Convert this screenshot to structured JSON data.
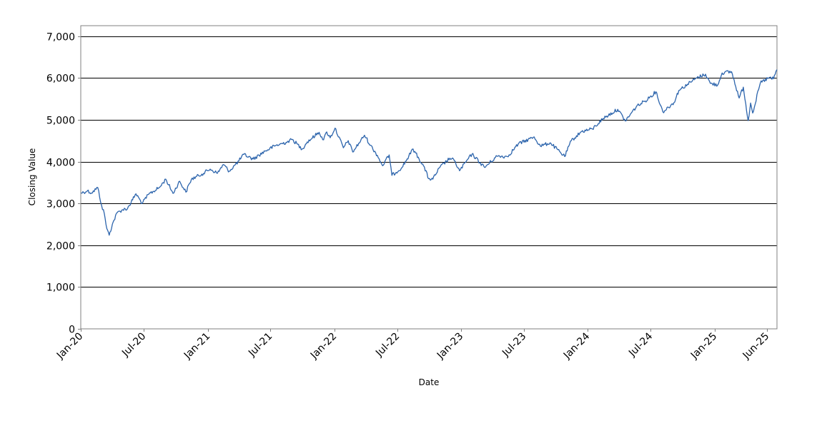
{
  "chart_data": {
    "type": "line",
    "title": "",
    "xlabel": "Date",
    "ylabel": "Closing Value",
    "ylim": [
      0,
      7250
    ],
    "xlim": [
      "2020-01-01",
      "2025-06-30"
    ],
    "grid": {
      "horizontal": true,
      "vertical": false
    },
    "legend": "none",
    "y_ticks": [
      0,
      1000,
      2000,
      3000,
      4000,
      5000,
      6000,
      7000
    ],
    "y_tick_labels": [
      "0",
      "1,000",
      "2,000",
      "3,000",
      "4,000",
      "5,000",
      "6,000",
      "7,000"
    ],
    "x_ticks": [
      {
        "label": "Jan-20",
        "date": "2020-01-01"
      },
      {
        "label": "Jul-20",
        "date": "2020-07-01"
      },
      {
        "label": "Jan-21",
        "date": "2021-01-01"
      },
      {
        "label": "Jul-21",
        "date": "2021-07-01"
      },
      {
        "label": "Jan-22",
        "date": "2022-01-01"
      },
      {
        "label": "Jul-22",
        "date": "2022-07-01"
      },
      {
        "label": "Jan-23",
        "date": "2023-01-01"
      },
      {
        "label": "Jul-23",
        "date": "2023-07-01"
      },
      {
        "label": "Jan-24",
        "date": "2024-01-01"
      },
      {
        "label": "Jul-24",
        "date": "2024-07-01"
      },
      {
        "label": "Jan-25",
        "date": "2025-01-01"
      },
      {
        "label": "Jun-25",
        "date": "2025-06-01"
      }
    ],
    "series": [
      {
        "color": "#2c64ac",
        "points": [
          [
            "2020-01-02",
            3250
          ],
          [
            "2020-01-20",
            3300
          ],
          [
            "2020-02-01",
            3250
          ],
          [
            "2020-02-19",
            3380
          ],
          [
            "2020-03-01",
            2950
          ],
          [
            "2020-03-09",
            2750
          ],
          [
            "2020-03-16",
            2400
          ],
          [
            "2020-03-23",
            2240
          ],
          [
            "2020-04-01",
            2500
          ],
          [
            "2020-04-15",
            2780
          ],
          [
            "2020-05-01",
            2850
          ],
          [
            "2020-05-15",
            2880
          ],
          [
            "2020-06-08",
            3230
          ],
          [
            "2020-06-26",
            3000
          ],
          [
            "2020-07-15",
            3220
          ],
          [
            "2020-08-15",
            3380
          ],
          [
            "2020-09-02",
            3580
          ],
          [
            "2020-09-23",
            3240
          ],
          [
            "2020-10-12",
            3530
          ],
          [
            "2020-10-30",
            3270
          ],
          [
            "2020-11-15",
            3580
          ],
          [
            "2020-12-15",
            3700
          ],
          [
            "2021-01-08",
            3820
          ],
          [
            "2021-01-29",
            3720
          ],
          [
            "2021-02-15",
            3930
          ],
          [
            "2021-03-04",
            3770
          ],
          [
            "2021-04-01",
            4020
          ],
          [
            "2021-04-15",
            4170
          ],
          [
            "2021-05-12",
            4060
          ],
          [
            "2021-06-15",
            4250
          ],
          [
            "2021-07-15",
            4380
          ],
          [
            "2021-08-15",
            4460
          ],
          [
            "2021-09-02",
            4530
          ],
          [
            "2021-09-30",
            4300
          ],
          [
            "2021-10-15",
            4470
          ],
          [
            "2021-11-18",
            4700
          ],
          [
            "2021-12-01",
            4520
          ],
          [
            "2021-12-10",
            4710
          ],
          [
            "2021-12-20",
            4570
          ],
          [
            "2022-01-03",
            4800
          ],
          [
            "2022-01-27",
            4330
          ],
          [
            "2022-02-10",
            4500
          ],
          [
            "2022-02-23",
            4230
          ],
          [
            "2022-03-29",
            4630
          ],
          [
            "2022-04-15",
            4390
          ],
          [
            "2022-05-05",
            4150
          ],
          [
            "2022-05-20",
            3900
          ],
          [
            "2022-06-08",
            4160
          ],
          [
            "2022-06-16",
            3670
          ],
          [
            "2022-07-15",
            3860
          ],
          [
            "2022-08-16",
            4300
          ],
          [
            "2022-09-15",
            3900
          ],
          [
            "2022-09-30",
            3590
          ],
          [
            "2022-10-12",
            3580
          ],
          [
            "2022-11-01",
            3860
          ],
          [
            "2022-11-30",
            4080
          ],
          [
            "2022-12-13",
            4020
          ],
          [
            "2022-12-28",
            3780
          ],
          [
            "2023-01-15",
            3990
          ],
          [
            "2023-02-02",
            4180
          ],
          [
            "2023-03-10",
            3860
          ],
          [
            "2023-04-15",
            4130
          ],
          [
            "2023-05-15",
            4120
          ],
          [
            "2023-06-15",
            4420
          ],
          [
            "2023-07-31",
            4590
          ],
          [
            "2023-08-18",
            4370
          ],
          [
            "2023-09-15",
            4450
          ],
          [
            "2023-10-27",
            4120
          ],
          [
            "2023-11-15",
            4500
          ],
          [
            "2023-12-15",
            4720
          ],
          [
            "2024-01-15",
            4780
          ],
          [
            "2024-02-15",
            5030
          ],
          [
            "2024-03-28",
            5250
          ],
          [
            "2024-04-19",
            4970
          ],
          [
            "2024-05-21",
            5320
          ],
          [
            "2024-06-15",
            5450
          ],
          [
            "2024-07-16",
            5670
          ],
          [
            "2024-08-05",
            5190
          ],
          [
            "2024-09-06",
            5410
          ],
          [
            "2024-09-20",
            5700
          ],
          [
            "2024-10-15",
            5850
          ],
          [
            "2024-11-11",
            6000
          ],
          [
            "2024-12-06",
            6090
          ],
          [
            "2024-12-20",
            5870
          ],
          [
            "2025-01-10",
            5830
          ],
          [
            "2025-01-23",
            6120
          ],
          [
            "2025-02-19",
            6150
          ],
          [
            "2025-03-13",
            5520
          ],
          [
            "2025-03-25",
            5780
          ],
          [
            "2025-04-08",
            4980
          ],
          [
            "2025-04-15",
            5400
          ],
          [
            "2025-04-21",
            5160
          ],
          [
            "2025-05-13",
            5880
          ],
          [
            "2025-06-06",
            6000
          ],
          [
            "2025-06-20",
            5980
          ],
          [
            "2025-06-30",
            6200
          ]
        ]
      }
    ]
  }
}
